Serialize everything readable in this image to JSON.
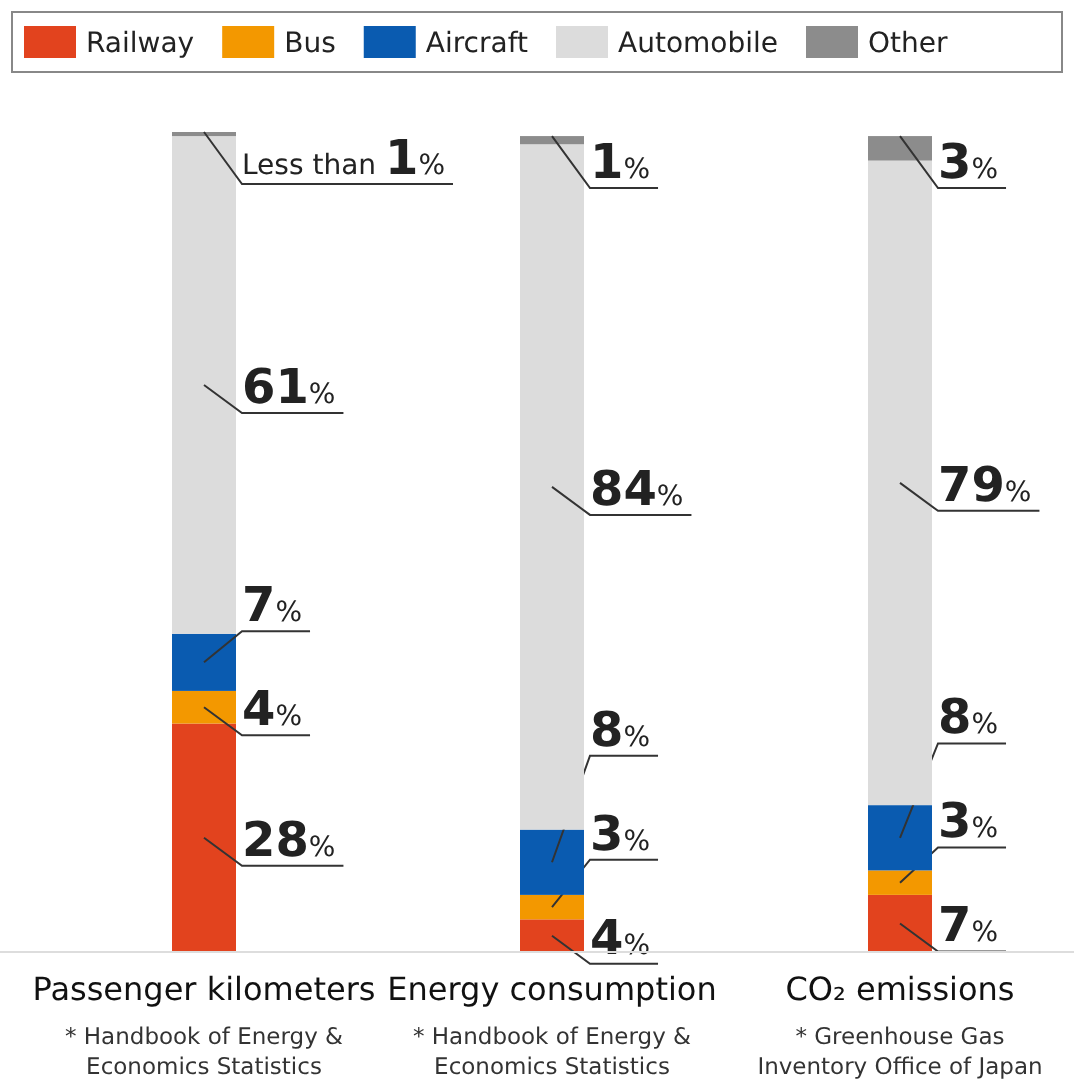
{
  "chart_data": {
    "type": "bar",
    "stacked": true,
    "legend": "top",
    "categories": [
      "Passenger kilometers",
      "Energy consumption",
      "CO₂ emissions"
    ],
    "series": [
      {
        "name": "Railway",
        "color": "#e2431e",
        "values": [
          28,
          4,
          7
        ],
        "value_labels": [
          "28%",
          "4%",
          "7%"
        ]
      },
      {
        "name": "Bus",
        "color": "#f39800",
        "values": [
          4,
          3,
          3
        ],
        "value_labels": [
          "4%",
          "3%",
          "3%"
        ]
      },
      {
        "name": "Aircraft",
        "color": "#0a5bb0",
        "values": [
          7,
          8,
          8
        ],
        "value_labels": [
          "7%",
          "8%",
          "8%"
        ]
      },
      {
        "name": "Automobile",
        "color": "#dcdcdc",
        "values": [
          61,
          84,
          79
        ],
        "value_labels": [
          "61%",
          "84%",
          "79%"
        ]
      },
      {
        "name": "Other",
        "color": "#8c8c8c",
        "values": [
          0.5,
          1,
          3
        ],
        "value_labels": [
          "Less than 1%",
          "1%",
          "3%"
        ]
      }
    ],
    "tick_labels": "x",
    "annotations": [
      "* Handbook of Energy & Economics Statistics",
      "* Handbook of Energy & Economics Statistics",
      "* Greenhouse Gas Inventory Office of Japan"
    ]
  }
}
